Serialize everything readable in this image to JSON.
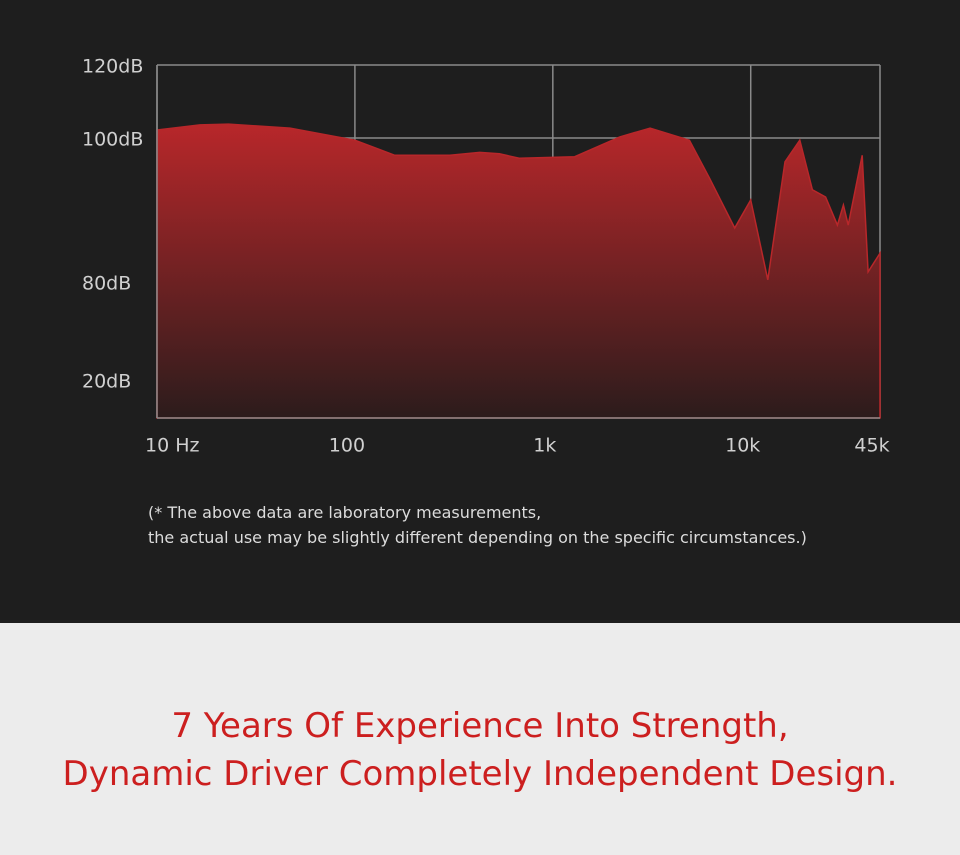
{
  "chart_data": {
    "type": "area",
    "color": "#b8272a",
    "xscale": "log",
    "grid": true,
    "x": [
      10,
      16.5,
      23,
      47,
      100,
      159,
      302,
      427,
      537,
      676,
      1290,
      2180,
      3100,
      4900,
      6200,
      8300,
      10000,
      12200,
      14900,
      17700,
      20500,
      23900,
      27400,
      29400,
      31100,
      36600,
      39200,
      45000
    ],
    "values": [
      102.2,
      103.6,
      103.8,
      102.7,
      99.7,
      97.6,
      97.6,
      98,
      97.8,
      97.2,
      97.4,
      100.3,
      102.7,
      99.7,
      94.4,
      87.5,
      91.4,
      80.3,
      96.7,
      99.7,
      92.8,
      91.8,
      87.9,
      90.7,
      87.9,
      97.6,
      81.4,
      84
    ],
    "xlim": [
      10,
      45000
    ],
    "xticks": [
      {
        "value": 10,
        "label": "10 Hz"
      },
      {
        "value": 100,
        "label": "100"
      },
      {
        "value": 1000,
        "label": "1k"
      },
      {
        "value": 10000,
        "label": "10k"
      },
      {
        "value": 45000,
        "label": "45k"
      }
    ],
    "ylim": [
      0,
      120
    ],
    "yticks": [
      {
        "value": 20,
        "label": "20dB"
      },
      {
        "value": 80,
        "label": "80dB"
      },
      {
        "value": 100,
        "label": "100dB"
      },
      {
        "value": 120,
        "label": "120dB"
      }
    ]
  },
  "note": [
    "(* The above data are laboratory measurements,",
    "the actual use may be slightly different depending on the specific circumstances.)"
  ],
  "headline": [
    "7 Years Of Experience Into Strength,",
    "Dynamic Driver Completely Independent Design."
  ]
}
